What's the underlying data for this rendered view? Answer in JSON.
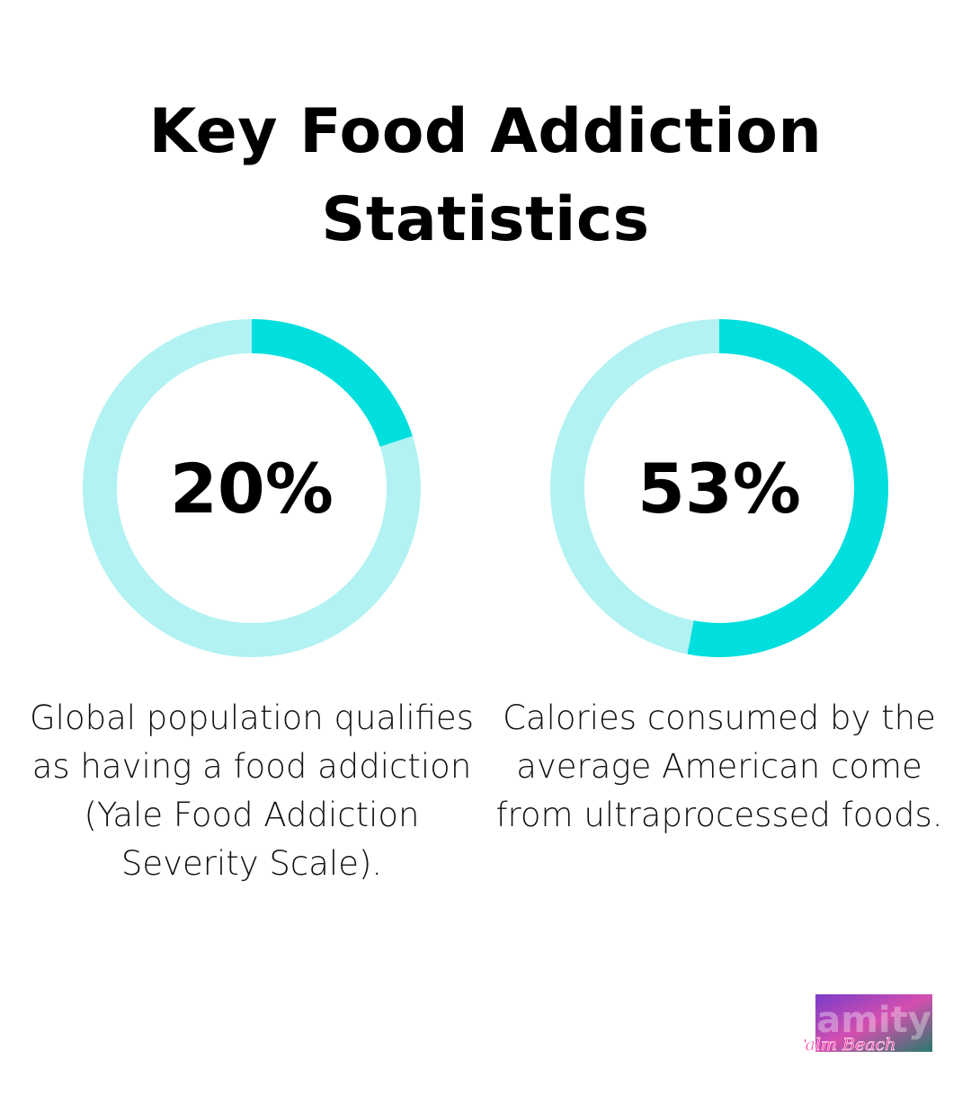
{
  "title": "Key Food Addiction Statistics",
  "colors": {
    "filled": "#00dede",
    "track": "#b2f2f2"
  },
  "chart_data": [
    {
      "type": "pie",
      "subtype": "donut",
      "value": 20,
      "max": 100,
      "label": "20%",
      "description": "Global population qualifies as having a food addiction (Yale Food Addiction Severity Scale)."
    },
    {
      "type": "pie",
      "subtype": "donut",
      "value": 53,
      "max": 100,
      "label": "53%",
      "description": "Calories consumed by the average American come from ultraprocessed foods."
    }
  ],
  "logo": {
    "text": "amity",
    "script": "Palm Beach"
  }
}
